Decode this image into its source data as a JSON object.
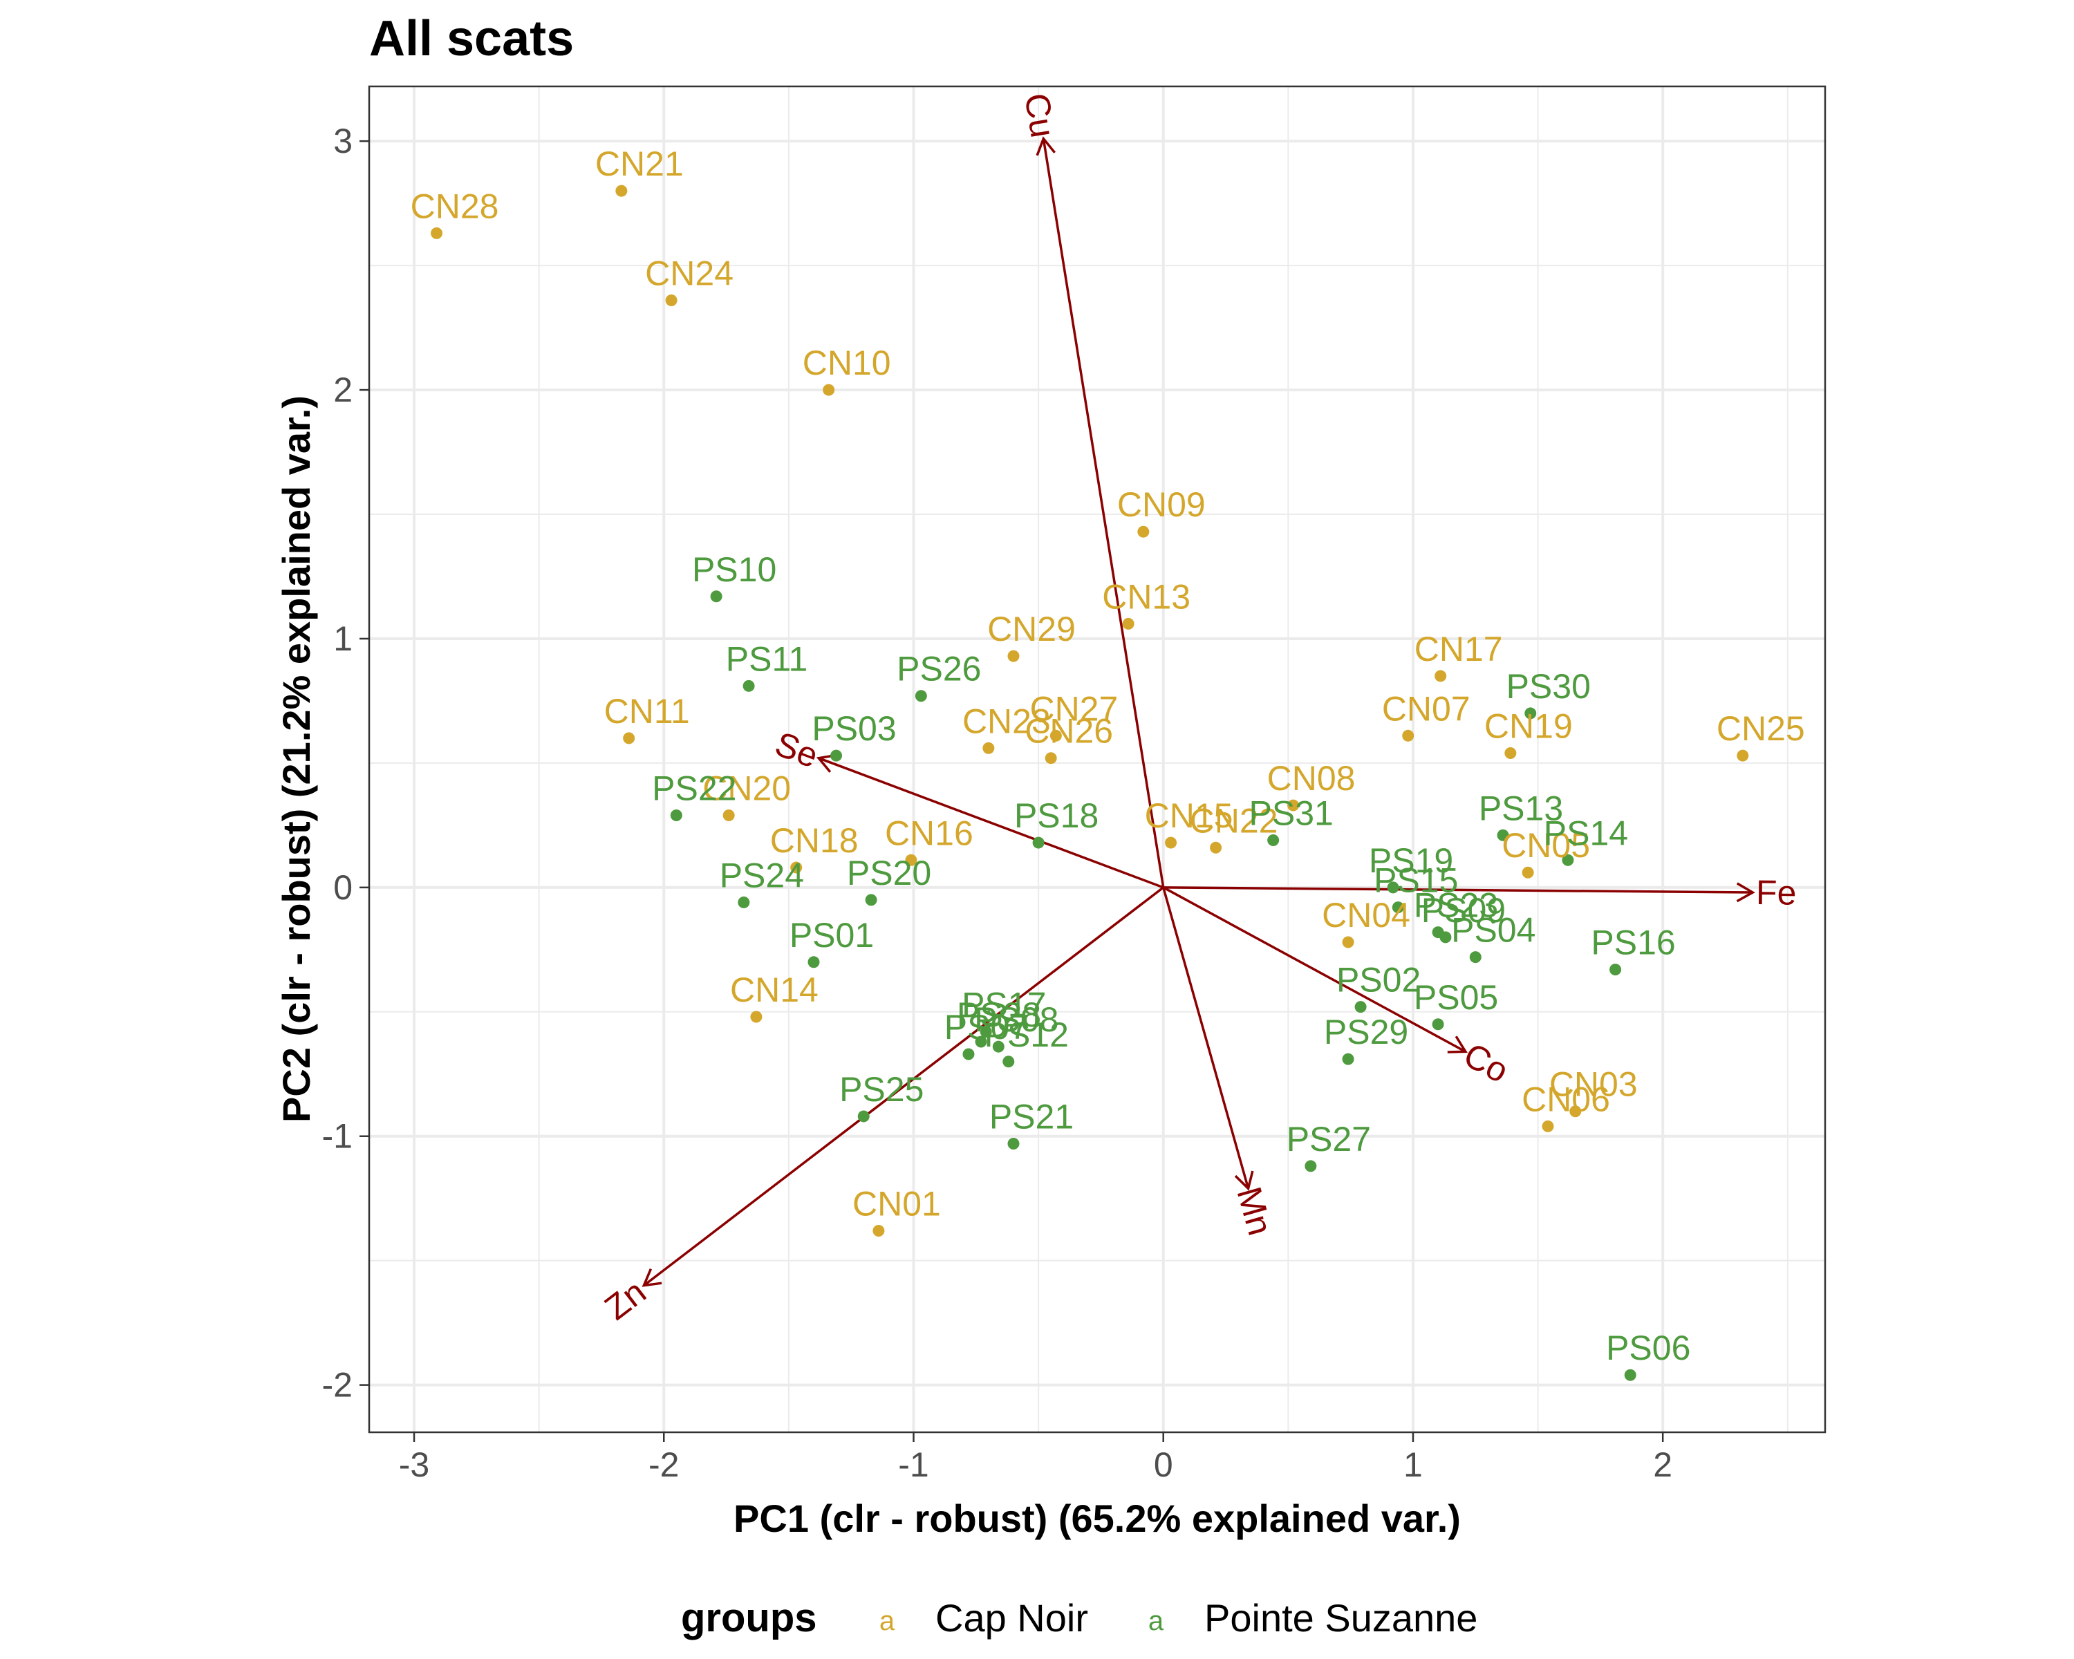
{
  "chart_data": {
    "type": "scatter",
    "title": "All scats",
    "xlabel": "PC1 (clr - robust) (65.2% explained var.)",
    "ylabel": "PC2 (clr - robust) (21.2% explained var.)",
    "xlim": [
      -3.18,
      2.65
    ],
    "ylim": [
      -2.19,
      3.22
    ],
    "x_ticks": [
      -3,
      -2,
      -1,
      0,
      1,
      2
    ],
    "x_tick_labels": [
      "-3",
      "-2",
      "-1",
      "0",
      "1",
      "2"
    ],
    "y_ticks": [
      -2,
      -1,
      0,
      1,
      2,
      3
    ],
    "y_tick_labels": [
      "-2",
      "-1",
      "0",
      "1",
      "2",
      "3"
    ],
    "grid": true,
    "legend": {
      "title": "groups",
      "position": "bottom",
      "key_glyph": "a",
      "entries": [
        "Cap Noir",
        "Pointe Suzanne"
      ]
    },
    "colors": {
      "Cap Noir": "#d4a72c",
      "Pointe Suzanne": "#4e9a3e",
      "arrows": "#8b0000",
      "grid": "#ebebeb",
      "panel_border": "#333333"
    },
    "series": [
      {
        "name": "Cap Noir",
        "points": [
          {
            "label": "CN28",
            "x": -2.91,
            "y": 2.63
          },
          {
            "label": "CN21",
            "x": -2.17,
            "y": 2.8
          },
          {
            "label": "CN24",
            "x": -1.97,
            "y": 2.36
          },
          {
            "label": "CN10",
            "x": -1.34,
            "y": 2.0
          },
          {
            "label": "CN09",
            "x": -0.08,
            "y": 1.43
          },
          {
            "label": "CN13",
            "x": -0.14,
            "y": 1.06
          },
          {
            "label": "CN29",
            "x": -0.6,
            "y": 0.93
          },
          {
            "label": "CN11",
            "x": -2.14,
            "y": 0.6
          },
          {
            "label": "CN27",
            "x": -0.43,
            "y": 0.61
          },
          {
            "label": "CN23",
            "x": -0.7,
            "y": 0.56
          },
          {
            "label": "CN26",
            "x": -0.45,
            "y": 0.52
          },
          {
            "label": "CN17",
            "x": 1.11,
            "y": 0.85
          },
          {
            "label": "CN07",
            "x": 0.98,
            "y": 0.61
          },
          {
            "label": "CN19",
            "x": 1.39,
            "y": 0.54
          },
          {
            "label": "CN25",
            "x": 2.32,
            "y": 0.53
          },
          {
            "label": "CN20",
            "x": -1.74,
            "y": 0.29
          },
          {
            "label": "CN08",
            "x": 0.52,
            "y": 0.33
          },
          {
            "label": "CN15",
            "x": 0.03,
            "y": 0.18
          },
          {
            "label": "CN22",
            "x": 0.21,
            "y": 0.16
          },
          {
            "label": "CN18",
            "x": -1.47,
            "y": 0.08
          },
          {
            "label": "CN16",
            "x": -1.01,
            "y": 0.11
          },
          {
            "label": "CN05",
            "x": 1.46,
            "y": 0.06
          },
          {
            "label": "CN04",
            "x": 0.74,
            "y": -0.22
          },
          {
            "label": "CN14",
            "x": -1.63,
            "y": -0.52
          },
          {
            "label": "CN03",
            "x": 1.65,
            "y": -0.9
          },
          {
            "label": "CN06",
            "x": 1.54,
            "y": -0.96
          },
          {
            "label": "CN01",
            "x": -1.14,
            "y": -1.38
          }
        ]
      },
      {
        "name": "Pointe Suzanne",
        "points": [
          {
            "label": "PS10",
            "x": -1.79,
            "y": 1.17
          },
          {
            "label": "PS11",
            "x": -1.66,
            "y": 0.81
          },
          {
            "label": "PS26",
            "x": -0.97,
            "y": 0.77
          },
          {
            "label": "PS03",
            "x": -1.31,
            "y": 0.53
          },
          {
            "label": "PS22",
            "x": -1.95,
            "y": 0.29
          },
          {
            "label": "PS30",
            "x": 1.47,
            "y": 0.7
          },
          {
            "label": "PS18",
            "x": -0.5,
            "y": 0.18
          },
          {
            "label": "PS31",
            "x": 0.44,
            "y": 0.19
          },
          {
            "label": "PS13",
            "x": 1.36,
            "y": 0.21
          },
          {
            "label": "PS14",
            "x": 1.62,
            "y": 0.11
          },
          {
            "label": "PS24",
            "x": -1.68,
            "y": -0.06
          },
          {
            "label": "PS20",
            "x": -1.17,
            "y": -0.05
          },
          {
            "label": "PS19",
            "x": 0.92,
            "y": 0.0
          },
          {
            "label": "PS15",
            "x": 0.94,
            "y": -0.08
          },
          {
            "label": "PS23",
            "x": 1.1,
            "y": -0.18
          },
          {
            "label": "PS09",
            "x": 1.13,
            "y": -0.2
          },
          {
            "label": "PS04",
            "x": 1.25,
            "y": -0.28
          },
          {
            "label": "PS16",
            "x": 1.81,
            "y": -0.33
          },
          {
            "label": "PS01",
            "x": -1.4,
            "y": -0.3
          },
          {
            "label": "PS02",
            "x": 0.79,
            "y": -0.48
          },
          {
            "label": "PS05",
            "x": 1.1,
            "y": -0.55
          },
          {
            "label": "PS29",
            "x": 0.74,
            "y": -0.69
          },
          {
            "label": "PS17",
            "x": -0.71,
            "y": -0.58
          },
          {
            "label": "PS07",
            "x": -0.78,
            "y": -0.67
          },
          {
            "label": "PS28",
            "x": -0.73,
            "y": -0.62
          },
          {
            "label": "PS08",
            "x": -0.66,
            "y": -0.64
          },
          {
            "label": "PS12",
            "x": -0.62,
            "y": -0.7
          },
          {
            "label": "PS25",
            "x": -1.2,
            "y": -0.92
          },
          {
            "label": "PS21",
            "x": -0.6,
            "y": -1.03
          },
          {
            "label": "PS27",
            "x": 0.59,
            "y": -1.12
          },
          {
            "label": "PS06",
            "x": 1.87,
            "y": -1.96
          }
        ]
      }
    ],
    "loadings": [
      {
        "label": "Cu",
        "x": -0.48,
        "y": 3.01
      },
      {
        "label": "Se",
        "x": -1.38,
        "y": 0.52
      },
      {
        "label": "Fe",
        "x": 2.36,
        "y": -0.02
      },
      {
        "label": "Co",
        "x": 1.21,
        "y": -0.66
      },
      {
        "label": "Mn",
        "x": 0.34,
        "y": -1.21
      },
      {
        "label": "Zn",
        "x": -2.08,
        "y": -1.6
      }
    ]
  }
}
